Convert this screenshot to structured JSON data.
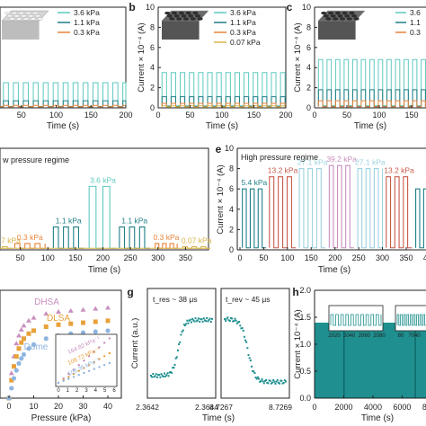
{
  "chart_data": [
    {
      "panel": "a",
      "panel_label": "",
      "type": "line",
      "xlabel": "Time (s)",
      "ylabel": "",
      "xlim": [
        0,
        200
      ],
      "ylim": [
        0,
        10
      ],
      "xticks": [
        "50",
        "100",
        "150",
        "200"
      ],
      "legend": {
        "placement": "top-right",
        "entries": [
          "3.6 kPa",
          "1.1 kPa",
          "0.3 kPa"
        ]
      },
      "series": [
        {
          "name": "3.6 kPa",
          "color": "#5ec9bf",
          "low": 0.15,
          "high": 2.5
        },
        {
          "name": "1.1 kPa",
          "color": "#1f7f86",
          "low": 0.12,
          "high": 0.7
        },
        {
          "name": "0.3 kPa",
          "color": "#e8833a",
          "low": 0.1,
          "high": 0.25
        }
      ],
      "pulses": 14
    },
    {
      "panel": "b",
      "panel_label": "b",
      "type": "line",
      "xlabel": "Time (s)",
      "ylabel": "Current × 10⁻⁴ (A)",
      "xlim": [
        0,
        200
      ],
      "ylim": [
        0,
        10
      ],
      "xticks": [
        "0",
        "50",
        "100",
        "150",
        "200"
      ],
      "yticks": [
        "0",
        "2",
        "4",
        "6",
        "8",
        "10"
      ],
      "legend": {
        "placement": "top-right",
        "entries": [
          "3.6 kPa",
          "1.1 kPa",
          "0.3 kPa",
          "0.07 kPa"
        ]
      },
      "series": [
        {
          "name": "3.6 kPa",
          "color": "#5ec9bf",
          "low": 0.2,
          "high": 3.5
        },
        {
          "name": "1.1 kPa",
          "color": "#1f7f86",
          "low": 0.15,
          "high": 1.1
        },
        {
          "name": "0.3 kPa",
          "color": "#e8833a",
          "low": 0.1,
          "high": 0.45
        },
        {
          "name": "0.07 kPa",
          "color": "#d9b44a",
          "low": 0.08,
          "high": 0.2
        }
      ],
      "pulses": 14
    },
    {
      "panel": "c",
      "panel_label": "c",
      "type": "line",
      "xlabel": "Time (s)",
      "ylabel": "Current × 10⁻⁴ (A)",
      "xlim": [
        0,
        200
      ],
      "ylim": [
        0,
        10
      ],
      "xticks": [
        "0",
        "50",
        "100",
        "150"
      ],
      "yticks": [
        "0",
        "2",
        "4",
        "6",
        "8",
        "10"
      ],
      "legend": {
        "placement": "top-right",
        "entries": [
          "3.6",
          "1.1",
          "0.3"
        ]
      },
      "series": [
        {
          "name": "3.6",
          "color": "#5ec9bf",
          "low": 0.2,
          "high": 4.8
        },
        {
          "name": "1.1",
          "color": "#1f7f86",
          "low": 0.15,
          "high": 1.8
        },
        {
          "name": "0.3",
          "color": "#e8833a",
          "low": 0.1,
          "high": 0.7
        }
      ],
      "pulses": 13
    },
    {
      "panel": "d",
      "panel_label": "",
      "type": "line",
      "title": "w pressure regime",
      "xlabel": "Time (s)",
      "ylabel": "",
      "xlim": [
        0,
        400
      ],
      "ylim": [
        0,
        8
      ],
      "xticks": [
        "50",
        "100",
        "150",
        "200",
        "250",
        "300",
        "350"
      ],
      "segments": [
        {
          "label": "7 kPa",
          "color": "#d9b44a",
          "x0": 0,
          "x1": 35,
          "high": 0.25,
          "pulses": 2
        },
        {
          "label": "0.3 kPa",
          "color": "#e8833a",
          "x0": 40,
          "x1": 95,
          "high": 0.5,
          "pulses": 3
        },
        {
          "label": "1.1 kPa",
          "color": "#1f7f86",
          "x0": 110,
          "x1": 165,
          "high": 1.8,
          "pulses": 3
        },
        {
          "label": "3.6 kPa",
          "color": "#5ec9bf",
          "x0": 175,
          "x1": 225,
          "high": 5.0,
          "pulses": 2
        },
        {
          "label": "1.1 kPa",
          "color": "#1f7f86",
          "x0": 230,
          "x1": 285,
          "high": 1.8,
          "pulses": 3
        },
        {
          "label": "0.3 kPa",
          "color": "#e8833a",
          "x0": 295,
          "x1": 335,
          "high": 0.5,
          "pulses": 3
        },
        {
          "label": "0.07 kPa",
          "color": "#d9b44a",
          "x0": 345,
          "x1": 395,
          "high": 0.25,
          "pulses": 3
        }
      ]
    },
    {
      "panel": "e",
      "panel_label": "e",
      "type": "line",
      "title": "High pressure regime",
      "xlabel": "Time (s)",
      "ylabel": "Current × 10⁻⁴ (A)",
      "xlim": [
        0,
        420
      ],
      "ylim": [
        0,
        10
      ],
      "xticks": [
        "0",
        "50",
        "100",
        "150",
        "200",
        "250",
        "300",
        "350",
        "400"
      ],
      "yticks": [
        "0",
        "2",
        "4",
        "6",
        "8",
        "10"
      ],
      "segments": [
        {
          "label": "5.4 kPa",
          "color": "#1f7f86",
          "x0": 5,
          "x1": 55,
          "high": 6.0,
          "pulses": 3
        },
        {
          "label": "13.2 kPa",
          "color": "#c85a4a",
          "x0": 62,
          "x1": 118,
          "high": 7.2,
          "pulses": 3
        },
        {
          "label": "27.1 kPa",
          "color": "#9cd2df",
          "x0": 125,
          "x1": 180,
          "high": 8.0,
          "pulses": 3
        },
        {
          "label": "39.2 kPa",
          "color": "#c98fbf",
          "x0": 188,
          "x1": 240,
          "high": 8.3,
          "pulses": 3
        },
        {
          "label": "27.1 kPa",
          "color": "#9cd2df",
          "x0": 248,
          "x1": 300,
          "high": 8.0,
          "pulses": 3
        },
        {
          "label": "13.2 kPa",
          "color": "#c85a4a",
          "x0": 308,
          "x1": 362,
          "high": 7.2,
          "pulses": 3
        },
        {
          "label": "5",
          "color": "#1f7f86",
          "x0": 370,
          "x1": 420,
          "high": 6.0,
          "pulses": 3
        }
      ]
    },
    {
      "panel": "f",
      "panel_label": "",
      "type": "scatter",
      "xlabel": "Pressure (kPa)",
      "ylabel": "",
      "xlim": [
        0,
        40
      ],
      "ylim": [
        0,
        1
      ],
      "xticks": [
        "0",
        "10",
        "20",
        "30",
        "40"
      ],
      "series": [
        {
          "name": "DHSA",
          "color": "#c98fbf",
          "x": [
            0,
            1,
            2,
            3,
            4,
            5,
            6,
            8,
            10,
            15,
            20,
            25,
            30,
            35,
            40
          ],
          "y": [
            0,
            0.25,
            0.42,
            0.55,
            0.63,
            0.69,
            0.73,
            0.78,
            0.81,
            0.85,
            0.87,
            0.88,
            0.89,
            0.9,
            0.91
          ]
        },
        {
          "name": "DLSA",
          "color": "#e8a13a",
          "x": [
            0,
            1,
            2,
            3,
            4,
            5,
            6,
            8,
            10,
            15,
            20,
            25,
            30,
            35,
            40
          ],
          "y": [
            0,
            0.18,
            0.32,
            0.42,
            0.5,
            0.56,
            0.6,
            0.65,
            0.68,
            0.72,
            0.74,
            0.75,
            0.76,
            0.77,
            0.78
          ]
        },
        {
          "name": "Dome",
          "color": "#8fb5e0",
          "x": [
            0,
            1,
            2,
            3,
            4,
            5,
            6,
            8,
            10,
            15,
            20,
            25,
            30,
            35,
            40
          ],
          "y": [
            0,
            0.1,
            0.2,
            0.28,
            0.35,
            0.4,
            0.44,
            0.5,
            0.54,
            0.6,
            0.63,
            0.65,
            0.66,
            0.67,
            0.68
          ]
        }
      ],
      "inset": {
        "xticks": [
          "0",
          "1",
          "2",
          "3",
          "4",
          "5",
          "6"
        ],
        "annotations": [
          "164.82 kPa⁻¹",
          "108.72 kPa⁻¹",
          "106.35 kPa⁻¹"
        ]
      }
    },
    {
      "panel": "g",
      "panel_label": "g",
      "type": "scatter",
      "xlabel": "Time (s)",
      "ylabel": "Current (a.u.)",
      "left_xticks": [
        "2.3642",
        "2.3644"
      ],
      "right_xticks": [
        "8.7267",
        "8.7269"
      ],
      "annotations": [
        "t_res ~ 38 μs",
        "t_rev ~ 45 μs"
      ],
      "color": "#1f8f8f"
    },
    {
      "panel": "h",
      "panel_label": "h",
      "type": "area",
      "xlabel": "Time (s)",
      "ylabel": "Current × 10⁻⁴ (A)",
      "xlim": [
        0,
        8500
      ],
      "ylim": [
        0,
        2
      ],
      "xticks": [
        "0",
        "2000",
        "4000",
        "6000",
        "8000"
      ],
      "yticks": [
        "0.0",
        "0.5",
        "1.0",
        "1.5",
        "2.0"
      ],
      "level": 1.4,
      "color": "#1f8f8f",
      "inset_left_ticks": [
        "2020",
        "2040",
        "2060",
        "2080"
      ],
      "inset_right_ticks": [
        "80",
        "7040",
        "7"
      ]
    }
  ]
}
